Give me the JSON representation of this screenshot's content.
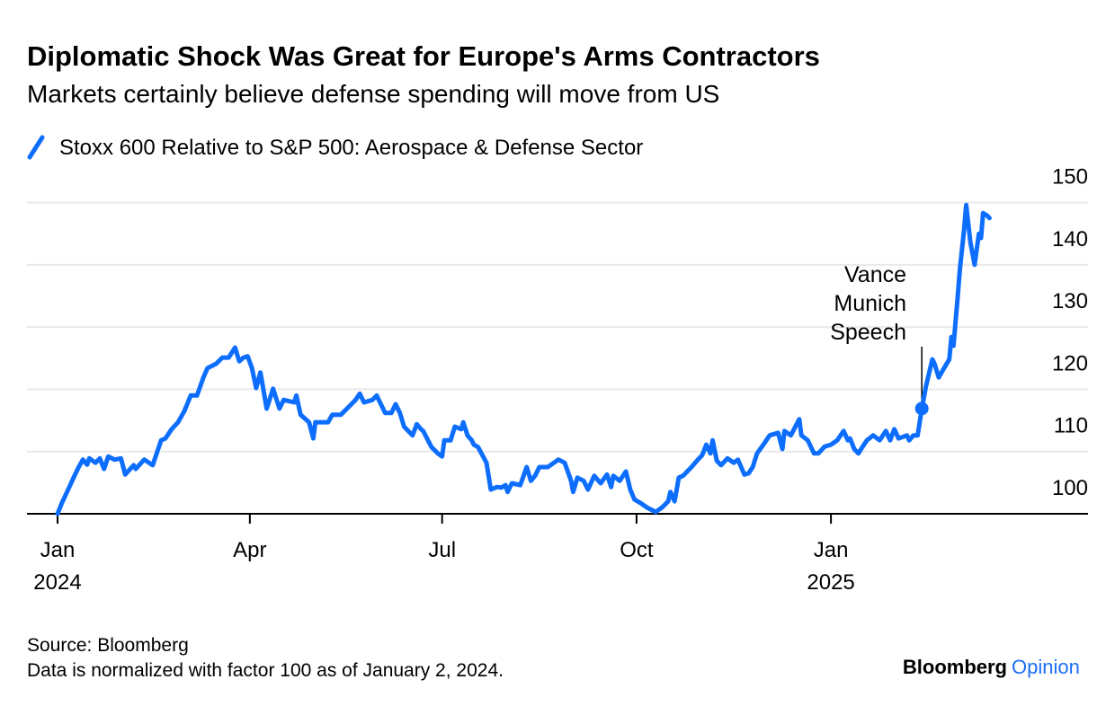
{
  "header": {
    "title": "Diplomatic Shock Was Great for Europe's Arms Contractors",
    "subtitle": "Markets certainly believe defense spending will move from US"
  },
  "footer": {
    "source": "Source: Bloomberg",
    "note": "Data is normalized with factor 100 as of January 2, 2024.",
    "logo_primary": "Bloomberg",
    "logo_secondary": "Opinion"
  },
  "colors": {
    "series": "#0d6efd",
    "grid": "#e9e9e9",
    "axis": "#000000",
    "logo_accent": "#1a6ef5"
  },
  "chart_data": {
    "type": "line",
    "title": "Diplomatic Shock Was Great for Europe's Arms Contractors",
    "subtitle": "Markets certainly believe defense spending will move from US",
    "xlabel": "",
    "ylabel": "",
    "ylim": [
      100,
      150
    ],
    "x_unit": "days since 2024-01-01",
    "xlim": [
      0,
      490
    ],
    "grid": true,
    "legend_placement": "top-left",
    "yticks": [
      {
        "value": 100,
        "label": "100"
      },
      {
        "value": 110,
        "label": "110"
      },
      {
        "value": 120,
        "label": "120"
      },
      {
        "value": 130,
        "label": "130"
      },
      {
        "value": 140,
        "label": "140"
      },
      {
        "value": 150,
        "label": "150"
      }
    ],
    "xticks": [
      {
        "day": 0,
        "label": "Jan",
        "year": "2024"
      },
      {
        "day": 91,
        "label": "Apr",
        "year": ""
      },
      {
        "day": 182,
        "label": "Jul",
        "year": ""
      },
      {
        "day": 274,
        "label": "Oct",
        "year": ""
      },
      {
        "day": 366,
        "label": "Jan",
        "year": "2025"
      }
    ],
    "annotation": {
      "lines": [
        "Vance",
        "Munich",
        "Speech"
      ],
      "day": 409,
      "value": 116.9
    },
    "series": [
      {
        "name": "Stoxx 600 Relative to S&P 500: Aerospace & Defense Sector",
        "points": [
          [
            0,
            100
          ],
          [
            2,
            101.7
          ],
          [
            5,
            103.9
          ],
          [
            8,
            106.1
          ],
          [
            10,
            107.5
          ],
          [
            12,
            108.7
          ],
          [
            14,
            107.9
          ],
          [
            15,
            108.9
          ],
          [
            18,
            108.2
          ],
          [
            20,
            108.9
          ],
          [
            22,
            107.2
          ],
          [
            24,
            109.2
          ],
          [
            27,
            108.7
          ],
          [
            30,
            108.9
          ],
          [
            32,
            106.3
          ],
          [
            36,
            107.8
          ],
          [
            37,
            107.2
          ],
          [
            41,
            108.7
          ],
          [
            45,
            107.8
          ],
          [
            49,
            111.8
          ],
          [
            51,
            112.1
          ],
          [
            54,
            113.6
          ],
          [
            57,
            114.7
          ],
          [
            60,
            116.5
          ],
          [
            63,
            119.0
          ],
          [
            66,
            119.0
          ],
          [
            69,
            121.9
          ],
          [
            71,
            123.4
          ],
          [
            75,
            124.1
          ],
          [
            78,
            125.1
          ],
          [
            81,
            125.1
          ],
          [
            84,
            126.7
          ],
          [
            86,
            124.5
          ],
          [
            88,
            125.1
          ],
          [
            90,
            125.3
          ],
          [
            92,
            123.4
          ],
          [
            94,
            120.2
          ],
          [
            96,
            122.7
          ],
          [
            99,
            116.9
          ],
          [
            102,
            120.1
          ],
          [
            105,
            116.9
          ],
          [
            107,
            118.3
          ],
          [
            112,
            117.9
          ],
          [
            113,
            119.0
          ],
          [
            115,
            115.9
          ],
          [
            119,
            114.7
          ],
          [
            121,
            112.1
          ],
          [
            122,
            114.7
          ],
          [
            128,
            114.7
          ],
          [
            130,
            115.9
          ],
          [
            134,
            115.9
          ],
          [
            137,
            116.9
          ],
          [
            141,
            118.3
          ],
          [
            143,
            119.3
          ],
          [
            145,
            117.9
          ],
          [
            149,
            118.3
          ],
          [
            151,
            119.0
          ],
          [
            155,
            116.2
          ],
          [
            158,
            116.2
          ],
          [
            160,
            117.6
          ],
          [
            162,
            116.2
          ],
          [
            164,
            114.0
          ],
          [
            168,
            112.6
          ],
          [
            170,
            114.4
          ],
          [
            172,
            113.6
          ],
          [
            173,
            113.3
          ],
          [
            177,
            110.7
          ],
          [
            180,
            109.7
          ],
          [
            182,
            109.2
          ],
          [
            183,
            111.8
          ],
          [
            186,
            111.8
          ],
          [
            188,
            114.0
          ],
          [
            191,
            113.6
          ],
          [
            192,
            114.7
          ],
          [
            194,
            112.6
          ],
          [
            196,
            111.8
          ],
          [
            197,
            111.1
          ],
          [
            199,
            110.7
          ],
          [
            203,
            108.2
          ],
          [
            205,
            103.9
          ],
          [
            208,
            104.3
          ],
          [
            210,
            104.2
          ],
          [
            212,
            104.6
          ],
          [
            213,
            103.5
          ],
          [
            215,
            104.9
          ],
          [
            219,
            104.6
          ],
          [
            222,
            107.5
          ],
          [
            224,
            105.3
          ],
          [
            226,
            106.1
          ],
          [
            228,
            107.5
          ],
          [
            232,
            107.5
          ],
          [
            237,
            108.7
          ],
          [
            240,
            108.2
          ],
          [
            243,
            105.3
          ],
          [
            244,
            103.5
          ],
          [
            246,
            105.8
          ],
          [
            249,
            105.3
          ],
          [
            251,
            103.9
          ],
          [
            254,
            106.1
          ],
          [
            257,
            104.9
          ],
          [
            260,
            106.3
          ],
          [
            262,
            104.3
          ],
          [
            263,
            106.1
          ],
          [
            266,
            105.3
          ],
          [
            269,
            106.8
          ],
          [
            271,
            103.9
          ],
          [
            273,
            102.3
          ],
          [
            276,
            101.7
          ],
          [
            279,
            101.0
          ],
          [
            283,
            100.3
          ],
          [
            286,
            101.0
          ],
          [
            289,
            102.0
          ],
          [
            290,
            103.5
          ],
          [
            292,
            102.0
          ],
          [
            294,
            105.8
          ],
          [
            296,
            106.1
          ],
          [
            300,
            107.5
          ],
          [
            303,
            108.7
          ],
          [
            305,
            109.4
          ],
          [
            307,
            111.1
          ],
          [
            309,
            109.7
          ],
          [
            310,
            111.8
          ],
          [
            312,
            108.5
          ],
          [
            314,
            107.8
          ],
          [
            317,
            108.9
          ],
          [
            320,
            108.2
          ],
          [
            322,
            108.7
          ],
          [
            325,
            106.3
          ],
          [
            327,
            106.5
          ],
          [
            329,
            107.5
          ],
          [
            331,
            109.7
          ],
          [
            334,
            111.1
          ],
          [
            337,
            112.6
          ],
          [
            339,
            112.8
          ],
          [
            341,
            113.0
          ],
          [
            343,
            110.4
          ],
          [
            344,
            113.3
          ],
          [
            347,
            112.6
          ],
          [
            351,
            115.2
          ],
          [
            352,
            112.6
          ],
          [
            355,
            111.8
          ],
          [
            358,
            109.7
          ],
          [
            360,
            109.7
          ],
          [
            363,
            110.8
          ],
          [
            366,
            111.1
          ],
          [
            369,
            111.8
          ],
          [
            372,
            113.3
          ],
          [
            374,
            111.8
          ],
          [
            375,
            112.1
          ],
          [
            377,
            110.4
          ],
          [
            379,
            109.7
          ],
          [
            381,
            110.8
          ],
          [
            383,
            111.8
          ],
          [
            386,
            112.6
          ],
          [
            389,
            111.8
          ],
          [
            392,
            113.3
          ],
          [
            394,
            111.8
          ],
          [
            396,
            113.6
          ],
          [
            398,
            112.1
          ],
          [
            402,
            112.6
          ],
          [
            403,
            111.8
          ],
          [
            405,
            112.6
          ],
          [
            407,
            112.6
          ],
          [
            408,
            114.7
          ],
          [
            409,
            116.9
          ],
          [
            411,
            120.5
          ],
          [
            414,
            124.8
          ],
          [
            415,
            124.1
          ],
          [
            417,
            121.9
          ],
          [
            419,
            123.1
          ],
          [
            422,
            124.8
          ],
          [
            423,
            128.4
          ],
          [
            424,
            127.0
          ],
          [
            426,
            134.9
          ],
          [
            427,
            139.3
          ],
          [
            429,
            145.7
          ],
          [
            430,
            149.6
          ],
          [
            432,
            143.6
          ],
          [
            434,
            140.0
          ],
          [
            436,
            145.0
          ],
          [
            437,
            144.3
          ],
          [
            438,
            148.3
          ],
          [
            440,
            147.9
          ],
          [
            441,
            147.5
          ]
        ]
      }
    ]
  }
}
